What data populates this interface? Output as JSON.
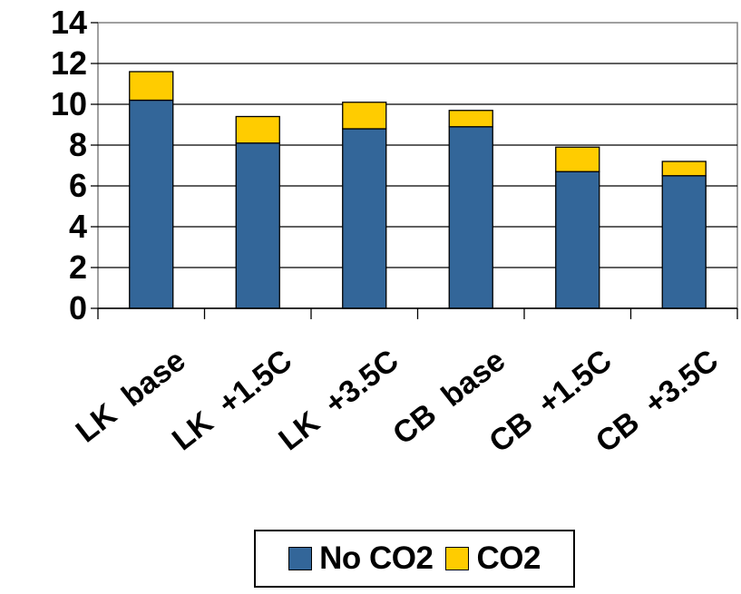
{
  "chart_data": {
    "type": "bar",
    "stacked": true,
    "categories": [
      "LK  base",
      "LK  +1.5C",
      "LK  +3.5C",
      "CB  base",
      "CB  +1.5C",
      "CB  +3.5C"
    ],
    "series": [
      {
        "name": "No CO2",
        "color": "#336699",
        "values": [
          10.2,
          8.1,
          8.8,
          8.9,
          6.7,
          6.5
        ]
      },
      {
        "name": "CO2",
        "color": "#FFCC00",
        "values": [
          1.4,
          1.3,
          1.3,
          0.8,
          1.2,
          0.7
        ]
      }
    ],
    "yticks": [
      "0",
      "2",
      "4",
      "6",
      "8",
      "10",
      "12",
      "14"
    ],
    "ylim": [
      0,
      14
    ],
    "grid": true,
    "legend": "bottom"
  }
}
